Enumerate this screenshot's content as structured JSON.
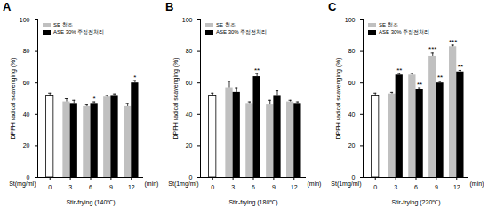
{
  "chart_data": [
    {
      "type": "bar",
      "panel_label": "A",
      "ylabel": "DPPH radical scavenging (%)",
      "xlabel": "Stir-frying (140℃)",
      "x_prefix": "St(mg/ml)",
      "x_suffix": "(min)",
      "categories": [
        "0",
        "3",
        "6",
        "9",
        "12"
      ],
      "control": {
        "value": 52,
        "error": 1.5,
        "color": "#ffffff"
      },
      "series": [
        {
          "name": "SE 청조",
          "color": "#c0c0c0",
          "values": [
            null,
            48,
            45,
            51,
            45
          ],
          "errors": [
            null,
            2,
            1,
            1,
            2
          ],
          "annotations": [
            null,
            null,
            null,
            null,
            null
          ]
        },
        {
          "name": "ASE 30% 주정전처리",
          "color": "#000000",
          "values": [
            null,
            47,
            47,
            52,
            60
          ],
          "errors": [
            null,
            2,
            1,
            1,
            1.5
          ],
          "annotations": [
            null,
            null,
            "*",
            null,
            "*"
          ]
        }
      ],
      "ylim": [
        0,
        100
      ],
      "yticks": [
        0,
        20,
        40,
        60,
        80,
        100
      ],
      "legend": "upper left"
    },
    {
      "type": "bar",
      "panel_label": "B",
      "ylabel": "DPPH radical scavenging (%)",
      "xlabel": "Stir-frying (180℃)",
      "x_prefix": "St(1mg/ml)",
      "x_suffix": "(min)",
      "categories": [
        "0",
        "3",
        "6",
        "9",
        "12"
      ],
      "control": {
        "value": 52,
        "error": 1.5,
        "color": "#ffffff"
      },
      "series": [
        {
          "name": "SE 청조",
          "color": "#c0c0c0",
          "values": [
            null,
            57,
            47,
            46,
            48
          ],
          "errors": [
            null,
            4,
            1,
            3,
            1
          ],
          "annotations": [
            null,
            null,
            null,
            null,
            null
          ]
        },
        {
          "name": "ASE 30% 주정전처리",
          "color": "#000000",
          "values": [
            null,
            54,
            64,
            52,
            47
          ],
          "errors": [
            null,
            3,
            2,
            3,
            1
          ],
          "annotations": [
            null,
            null,
            "**",
            null,
            null
          ]
        }
      ],
      "ylim": [
        0,
        100
      ],
      "yticks": [
        0,
        20,
        40,
        60,
        80,
        100
      ],
      "legend": "upper left"
    },
    {
      "type": "bar",
      "panel_label": "C",
      "ylabel": "DPPH radical scavenging (%)",
      "xlabel": "Stir-frying (220℃)",
      "x_prefix": "St(1mg/ml)",
      "x_suffix": "(min)",
      "categories": [
        "0",
        "3",
        "6",
        "9",
        "12"
      ],
      "control": {
        "value": 52,
        "error": 1.5,
        "color": "#ffffff"
      },
      "series": [
        {
          "name": "SE 청조",
          "color": "#c0c0c0",
          "values": [
            null,
            53,
            65,
            77,
            83
          ],
          "errors": [
            null,
            1,
            1,
            2,
            1
          ],
          "annotations": [
            null,
            null,
            null,
            "***",
            "***"
          ]
        },
        {
          "name": "ASE 30% 주정전처리",
          "color": "#000000",
          "values": [
            null,
            65,
            56,
            60,
            67
          ],
          "errors": [
            null,
            1,
            1,
            1,
            1
          ],
          "annotations": [
            null,
            "**",
            "**",
            "**",
            "**"
          ]
        }
      ],
      "ylim": [
        0,
        100
      ],
      "yticks": [
        0,
        20,
        40,
        60,
        80,
        100
      ],
      "legend": "upper left"
    }
  ]
}
